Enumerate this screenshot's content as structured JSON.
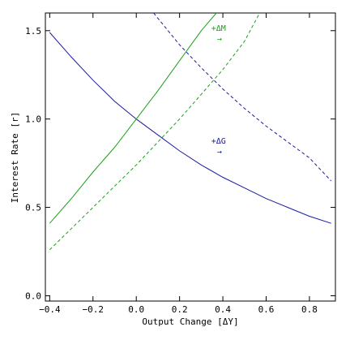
{
  "chart_data": {
    "type": "line",
    "title": "",
    "xlabel": "Output Change [ΔY]",
    "ylabel": "Interest Rate [r]",
    "xlim": [
      -0.42,
      0.92
    ],
    "ylim": [
      -0.03,
      1.6
    ],
    "grid": false,
    "x_ticks": [
      -0.4,
      -0.2,
      0.0,
      0.2,
      0.4,
      0.6,
      0.8
    ],
    "x_tick_labels": [
      "−0.4",
      "−0.2",
      "0.0",
      "0.2",
      "0.4",
      "0.6",
      "0.8"
    ],
    "y_ticks": [
      0.0,
      0.5,
      1.0,
      1.5
    ],
    "y_tick_labels": [
      "0.0",
      "0.5",
      "1.0",
      "1.5"
    ],
    "series": [
      {
        "color": "#1a1aa0",
        "dash": "solid",
        "x": [
          -0.4,
          -0.3,
          -0.2,
          -0.1,
          0.0,
          0.1,
          0.2,
          0.3,
          0.4,
          0.5,
          0.6,
          0.7,
          0.8,
          0.9
        ],
        "y": [
          1.49,
          1.35,
          1.22,
          1.1,
          1.0,
          0.91,
          0.82,
          0.74,
          0.67,
          0.61,
          0.55,
          0.5,
          0.45,
          0.41
        ]
      },
      {
        "color": "#1a1aa0",
        "dash": "dashed",
        "x": [
          0.08,
          0.2,
          0.3,
          0.4,
          0.5,
          0.6,
          0.7,
          0.8,
          0.9
        ],
        "y": [
          1.6,
          1.42,
          1.29,
          1.17,
          1.06,
          0.96,
          0.87,
          0.78,
          0.65
        ]
      },
      {
        "color": "#1aa01a",
        "dash": "solid",
        "x": [
          -0.4,
          -0.3,
          -0.2,
          -0.1,
          0.0,
          0.1,
          0.2,
          0.3,
          0.37
        ],
        "y": [
          0.41,
          0.55,
          0.7,
          0.84,
          1.0,
          1.16,
          1.33,
          1.5,
          1.6
        ]
      },
      {
        "color": "#1aa01a",
        "dash": "dashed",
        "x": [
          -0.4,
          -0.3,
          -0.2,
          -0.1,
          0.0,
          0.1,
          0.2,
          0.3,
          0.4,
          0.5,
          0.57
        ],
        "y": [
          0.26,
          0.38,
          0.5,
          0.62,
          0.74,
          0.87,
          1.0,
          1.14,
          1.28,
          1.44,
          1.6
        ]
      }
    ],
    "annotations": [
      {
        "text": "+ΔM",
        "arrow": "→",
        "x": 0.38,
        "y": 1.5,
        "color": "#1aa01a"
      },
      {
        "text": "+ΔG",
        "arrow": "→",
        "x": 0.38,
        "y": 0.86,
        "color": "#1a1aa0"
      }
    ]
  }
}
